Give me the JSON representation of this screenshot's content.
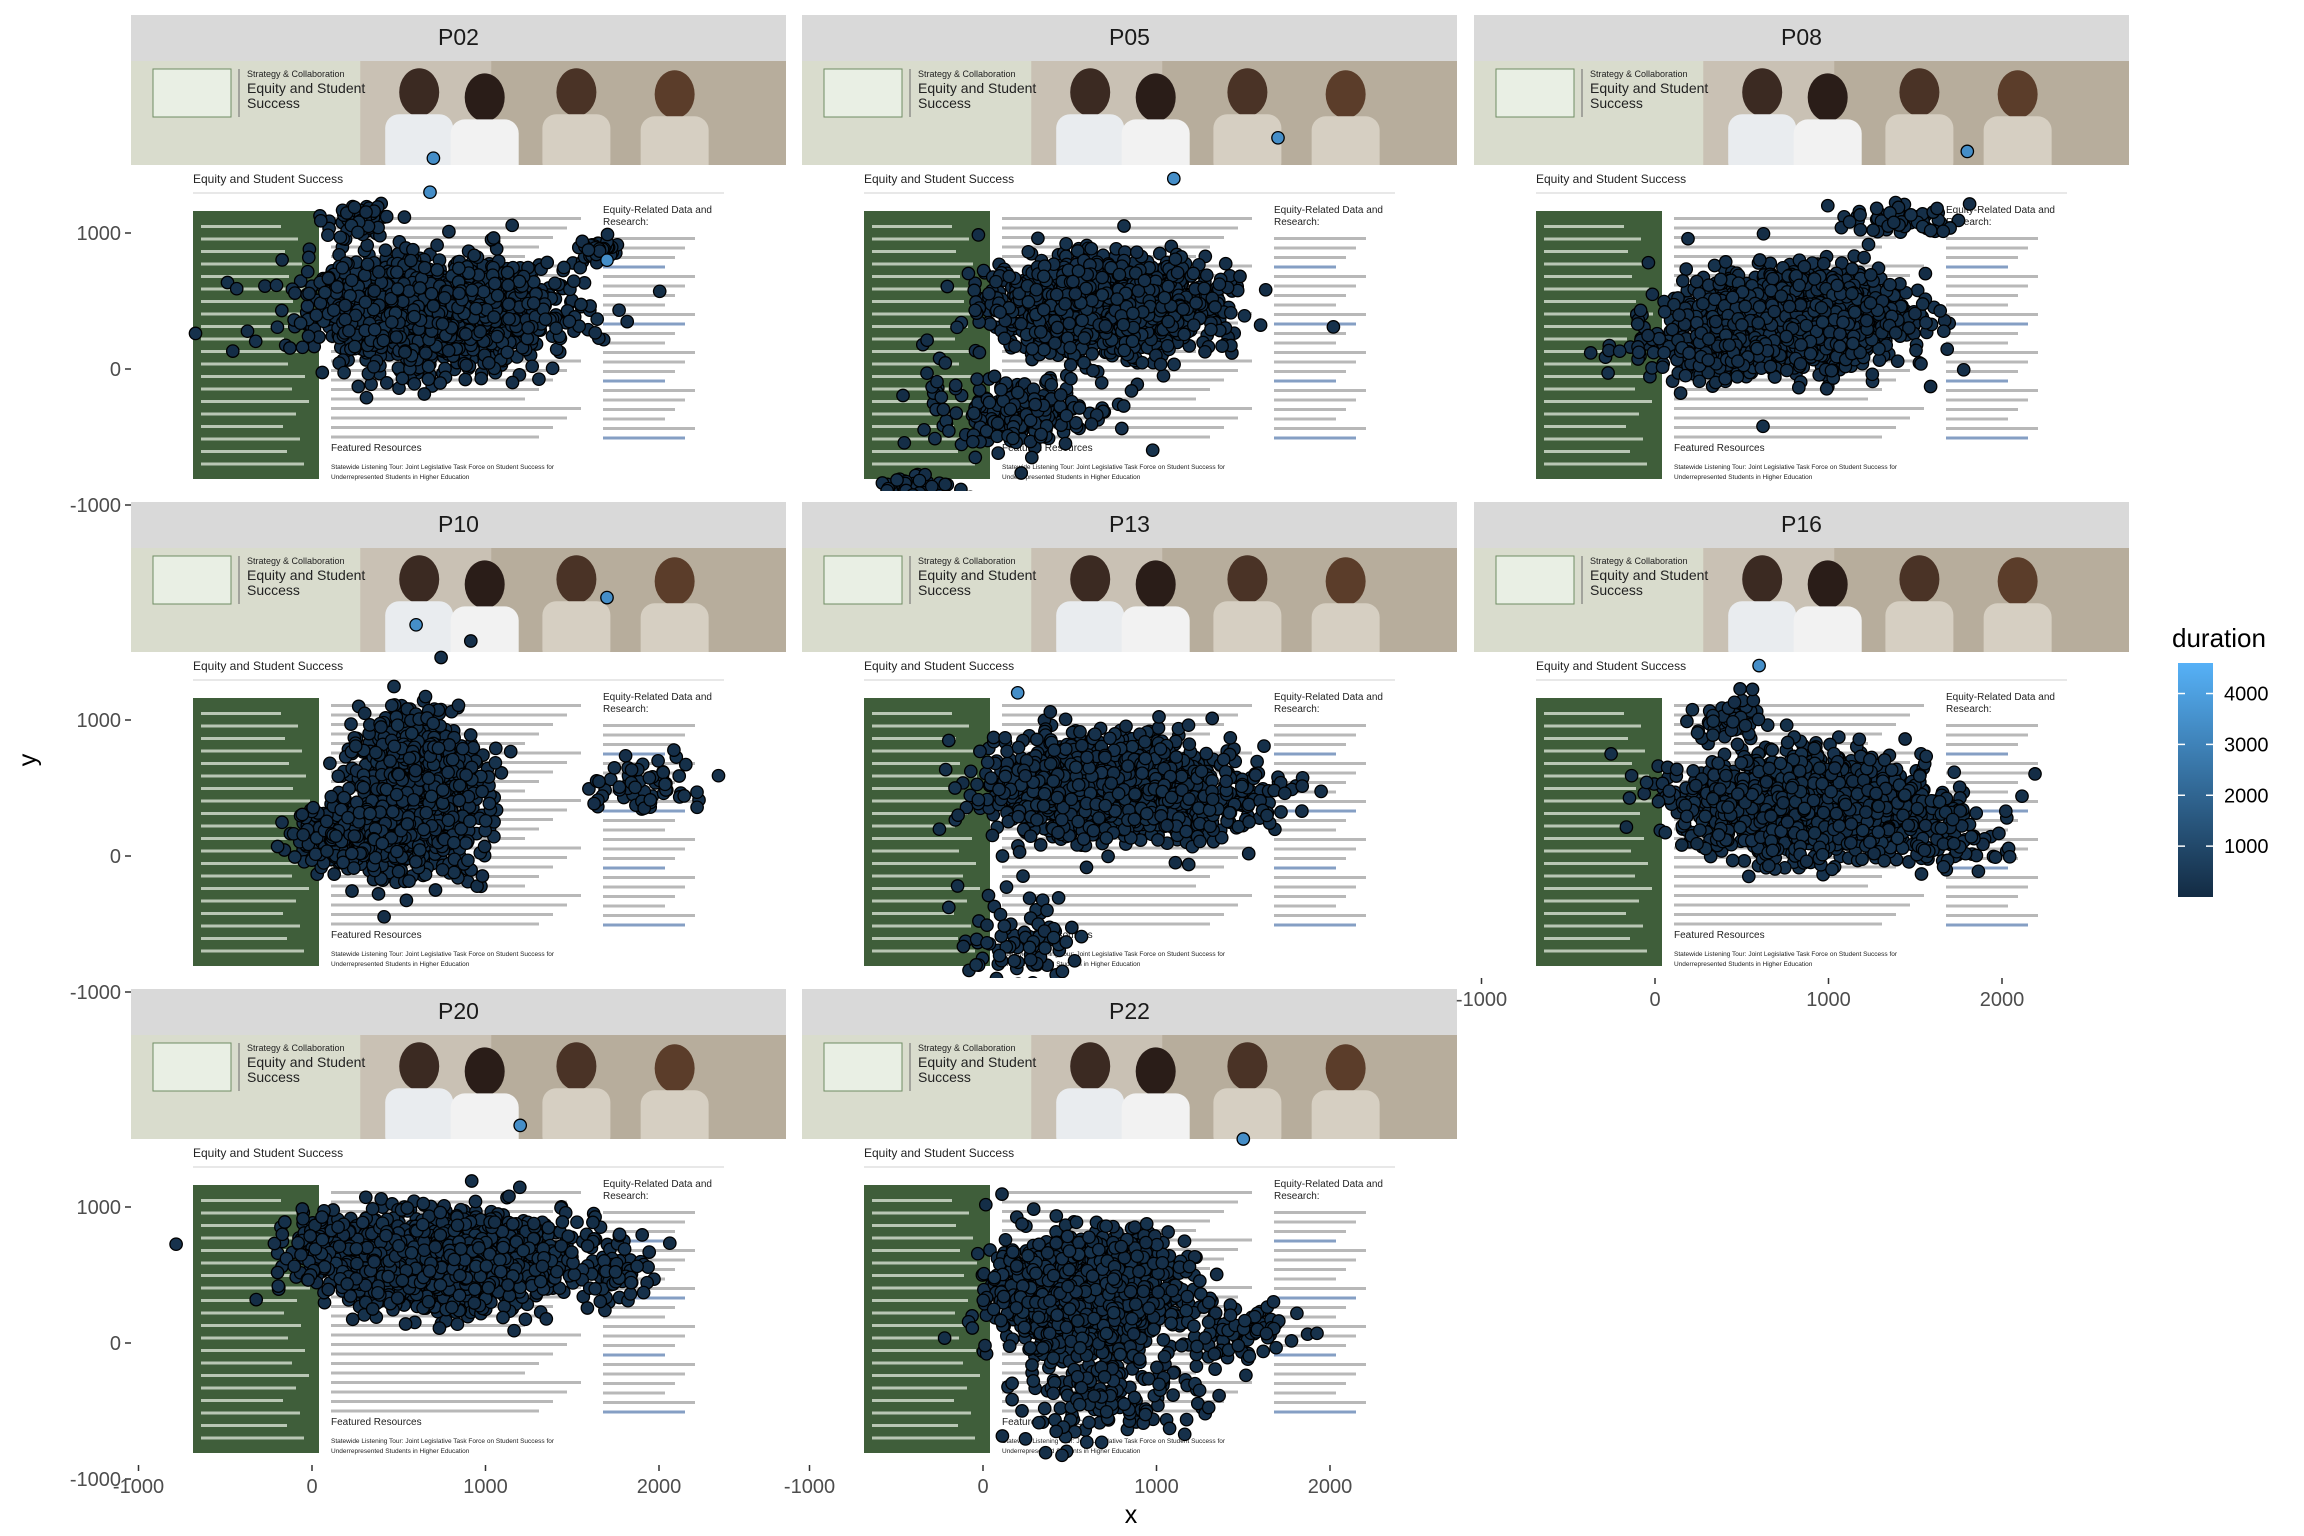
{
  "chart_data": {
    "type": "scatter",
    "facets": [
      "P02",
      "P05",
      "P08",
      "P10",
      "P13",
      "P16",
      "P20",
      "P22"
    ],
    "xlabel": "x",
    "ylabel": "y",
    "xlim": [
      -1000,
      2500
    ],
    "ylim": [
      -1200,
      1800
    ],
    "x_ticks": [
      -1000,
      0,
      1000,
      2000
    ],
    "y_ticks": [
      -1000,
      0,
      1000
    ],
    "x_tick_labels": [
      "-1000",
      "0",
      "1000",
      "2000"
    ],
    "y_tick_labels": [
      "-1000",
      "0",
      "1000"
    ],
    "legend": {
      "title": "duration",
      "type": "colorbar",
      "range": [
        0,
        4600
      ],
      "breaks": [
        1000,
        2000,
        3000,
        4000
      ],
      "break_labels": [
        "1000",
        "2000",
        "3000",
        "4000"
      ],
      "color_low": "#132b43",
      "color_high": "#56b1f7",
      "placement": "right"
    },
    "clusters": {
      "P02": [
        [
          700,
          420,
          620,
          340,
          1700
        ],
        [
          1650,
          880,
          80,
          60,
          60
        ],
        [
          300,
          1100,
          200,
          160,
          60
        ]
      ],
      "P05": [
        [
          700,
          460,
          560,
          300,
          1600
        ],
        [
          200,
          -300,
          500,
          250,
          220
        ],
        [
          -400,
          -900,
          200,
          120,
          60
        ]
      ],
      "P08": [
        [
          800,
          370,
          560,
          300,
          1600
        ],
        [
          300,
          120,
          520,
          180,
          160
        ],
        [
          1400,
          1100,
          300,
          100,
          60
        ]
      ],
      "P10": [
        [
          600,
          450,
          300,
          480,
          1500
        ],
        [
          250,
          150,
          300,
          220,
          260
        ],
        [
          1900,
          500,
          300,
          200,
          60
        ]
      ],
      "P13": [
        [
          700,
          500,
          560,
          320,
          1500
        ],
        [
          1300,
          400,
          500,
          300,
          150
        ],
        [
          200,
          -600,
          300,
          300,
          80
        ]
      ],
      "P16": [
        [
          900,
          380,
          620,
          320,
          1700
        ],
        [
          1700,
          120,
          300,
          200,
          80
        ],
        [
          400,
          1000,
          200,
          150,
          60
        ]
      ],
      "P20": [
        [
          800,
          600,
          600,
          300,
          1700
        ],
        [
          0,
          700,
          200,
          300,
          80
        ],
        [
          1800,
          500,
          150,
          200,
          50
        ]
      ],
      "P22": [
        [
          600,
          350,
          450,
          380,
          1600
        ],
        [
          700,
          -400,
          500,
          300,
          150
        ],
        [
          1500,
          100,
          300,
          200,
          80
        ]
      ]
    },
    "bright_points": {
      "P02": [
        [
          700,
          1550
        ],
        [
          680,
          1300
        ],
        [
          1700,
          800
        ]
      ],
      "P05": [
        [
          1700,
          1700
        ],
        [
          1100,
          1400
        ]
      ],
      "P08": [
        [
          1800,
          1600
        ]
      ],
      "P10": [
        [
          1700,
          1900
        ],
        [
          600,
          1700
        ]
      ],
      "P13": [
        [
          1300,
          -1000
        ],
        [
          200,
          1200
        ]
      ],
      "P16": [
        [
          600,
          1400
        ]
      ],
      "P20": [
        [
          1200,
          1600
        ]
      ],
      "P22": [
        [
          1500,
          1500
        ]
      ]
    },
    "background_screenshot": {
      "banner_kicker": "Strategy & Collaboration",
      "banner_title_line1": "Equity and Student",
      "banner_title_line2": "Success",
      "page_heading": "Equity and Student Success",
      "right_heading_line1": "Equity-Related Data and",
      "right_heading_line2": "Research:",
      "featured_label": "Featured Resources",
      "featured_line1": "Statewide Listening Tour: Joint Legislative Task Force on Student Success for",
      "featured_line2": "Underrepresented Students in Higher Education"
    }
  }
}
